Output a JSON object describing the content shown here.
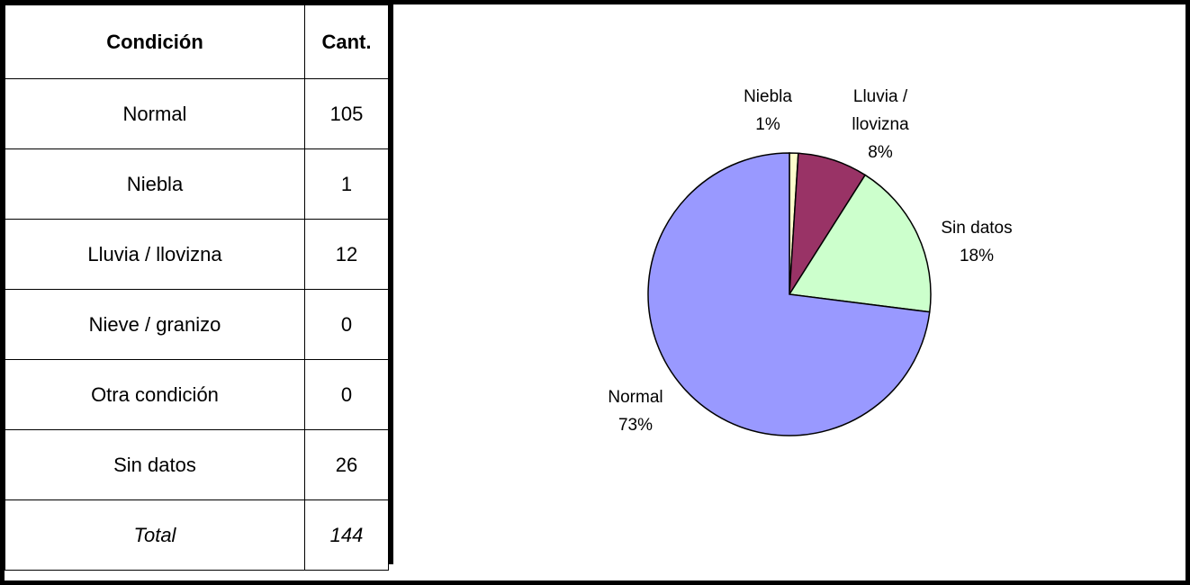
{
  "table": {
    "header": [
      "Condición",
      "Cant."
    ],
    "rows": [
      [
        "Normal",
        105
      ],
      [
        "Niebla",
        1
      ],
      [
        "Lluvia / llovizna",
        12
      ],
      [
        "Nieve / granizo",
        0
      ],
      [
        "Otra condición",
        0
      ],
      [
        "Sin datos",
        26
      ]
    ],
    "total": [
      "Total",
      144
    ]
  },
  "chart_data": {
    "type": "pie",
    "categories": [
      "Niebla",
      "Lluvia / llovizna",
      "Sin datos",
      "Normal"
    ],
    "values": [
      1,
      8,
      18,
      73
    ],
    "value_labels": [
      "1%",
      "8%",
      "18%",
      "73%"
    ],
    "colors": [
      "#ffffcc",
      "#993366",
      "#ccffcc",
      "#9999ff"
    ]
  }
}
